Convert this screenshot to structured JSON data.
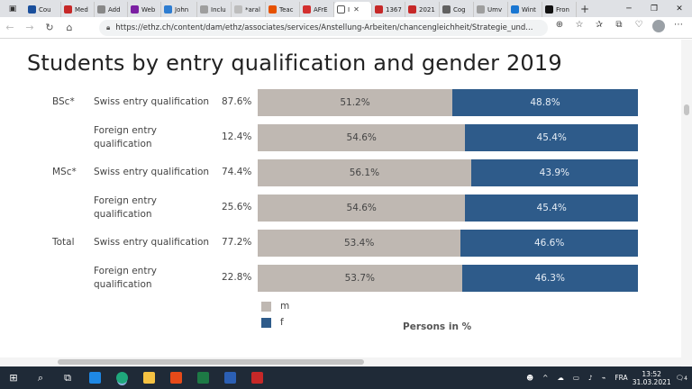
{
  "browser": {
    "tabs": [
      {
        "label": "Cou",
        "color": "#1a4f9c"
      },
      {
        "label": "Med",
        "color": "#c62828"
      },
      {
        "label": "Add",
        "color": "#888888"
      },
      {
        "label": "Web",
        "color": "#7b1fa2"
      },
      {
        "label": "John",
        "color": "#2e7dd1"
      },
      {
        "label": "Inclu",
        "color": "#9e9e9e"
      },
      {
        "label": "*aral",
        "color": "#bdbdbd"
      },
      {
        "label": "Teac",
        "color": "#e65100"
      },
      {
        "label": "AFrE",
        "color": "#d32f2f"
      },
      {
        "label": "I",
        "color": "#ffffff",
        "active": true
      },
      {
        "label": "1367",
        "color": "#c62828"
      },
      {
        "label": "2021",
        "color": "#c62828"
      },
      {
        "label": "Cog",
        "color": "#616161"
      },
      {
        "label": "Umv",
        "color": "#9e9e9e"
      },
      {
        "label": "Wint",
        "color": "#1976d2"
      },
      {
        "label": "Fron",
        "color": "#111111"
      }
    ],
    "new_tab": "+",
    "url": "https://ethz.ch/content/dam/ethz/associates/services/Anstellung-Arbeiten/chancengleichheit/Strategie_und..."
  },
  "title": "Students by entry qualification and gender 2019",
  "chart_data": {
    "type": "bar",
    "orientation": "horizontal-stacked-100",
    "groups": [
      {
        "name": "BSc*",
        "rows": [
          {
            "label": "Swiss entry qualification",
            "share": "87.6%",
            "m": 51.2,
            "f": 48.8
          },
          {
            "label": "Foreign entry qualification",
            "share": "12.4%",
            "m": 54.6,
            "f": 45.4
          }
        ]
      },
      {
        "name": "MSc*",
        "rows": [
          {
            "label": "Swiss entry qualification",
            "share": "74.4%",
            "m": 56.1,
            "f": 43.9
          },
          {
            "label": "Foreign entry qualification",
            "share": "25.6%",
            "m": 54.6,
            "f": 45.4
          }
        ]
      },
      {
        "name": "Total",
        "rows": [
          {
            "label": "Swiss entry qualification",
            "share": "77.2%",
            "m": 53.4,
            "f": 46.6
          },
          {
            "label": "Foreign entry qualification",
            "share": "22.8%",
            "m": 53.7,
            "f": 46.3
          }
        ]
      }
    ],
    "series": [
      {
        "name": "m",
        "color": "#bfb8b2"
      },
      {
        "name": "f",
        "color": "#2e5b8a"
      }
    ],
    "xlabel": "Persons in %"
  },
  "taskbar": {
    "language": "FRA",
    "time": "13:52",
    "date": "31.03.2021",
    "notifications": "4"
  }
}
